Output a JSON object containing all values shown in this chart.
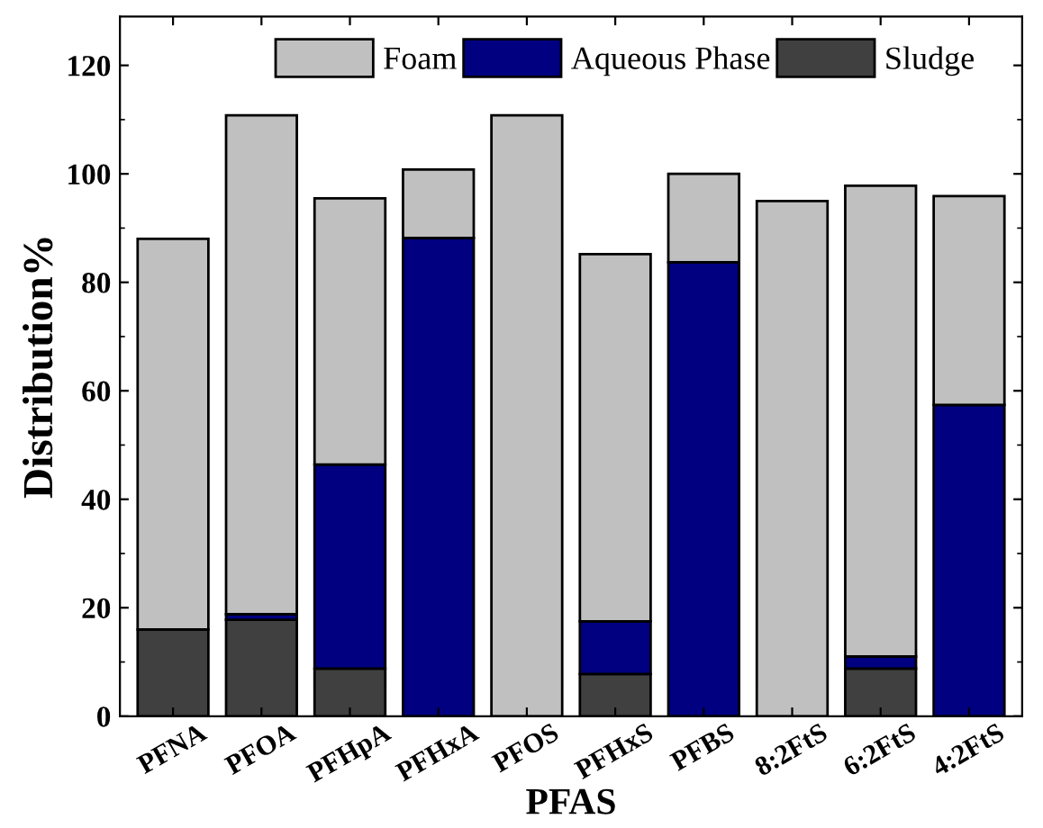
{
  "chart_data": {
    "type": "bar",
    "stacked": true,
    "xlabel": "PFAS",
    "ylabel": "Distribution%",
    "categories": [
      "PFNA",
      "PFOA",
      "PFHpA",
      "PFHxA",
      "PFOS",
      "PFHxS",
      "PFBS",
      "8:2FtS",
      "6:2FtS",
      "4:2FtS"
    ],
    "series": [
      {
        "name": "Sludge",
        "color": "#404040",
        "values": [
          16.0,
          17.8,
          8.8,
          0,
          0,
          7.8,
          0,
          0,
          8.8,
          0
        ]
      },
      {
        "name": "Aqueous Phase",
        "color": "#000080",
        "values": [
          0,
          1.0,
          37.6,
          88.2,
          0,
          9.7,
          83.7,
          0,
          2.2,
          57.4
        ]
      },
      {
        "name": "Foam",
        "color": "#c0c0c0",
        "values": [
          72.0,
          92.0,
          49.1,
          12.6,
          110.8,
          67.7,
          16.3,
          95.0,
          86.8,
          38.5
        ]
      }
    ],
    "ylim": [
      0,
      129
    ],
    "yticks": [
      0,
      20,
      40,
      60,
      80,
      100,
      120
    ],
    "grid": false,
    "legend": "top"
  }
}
